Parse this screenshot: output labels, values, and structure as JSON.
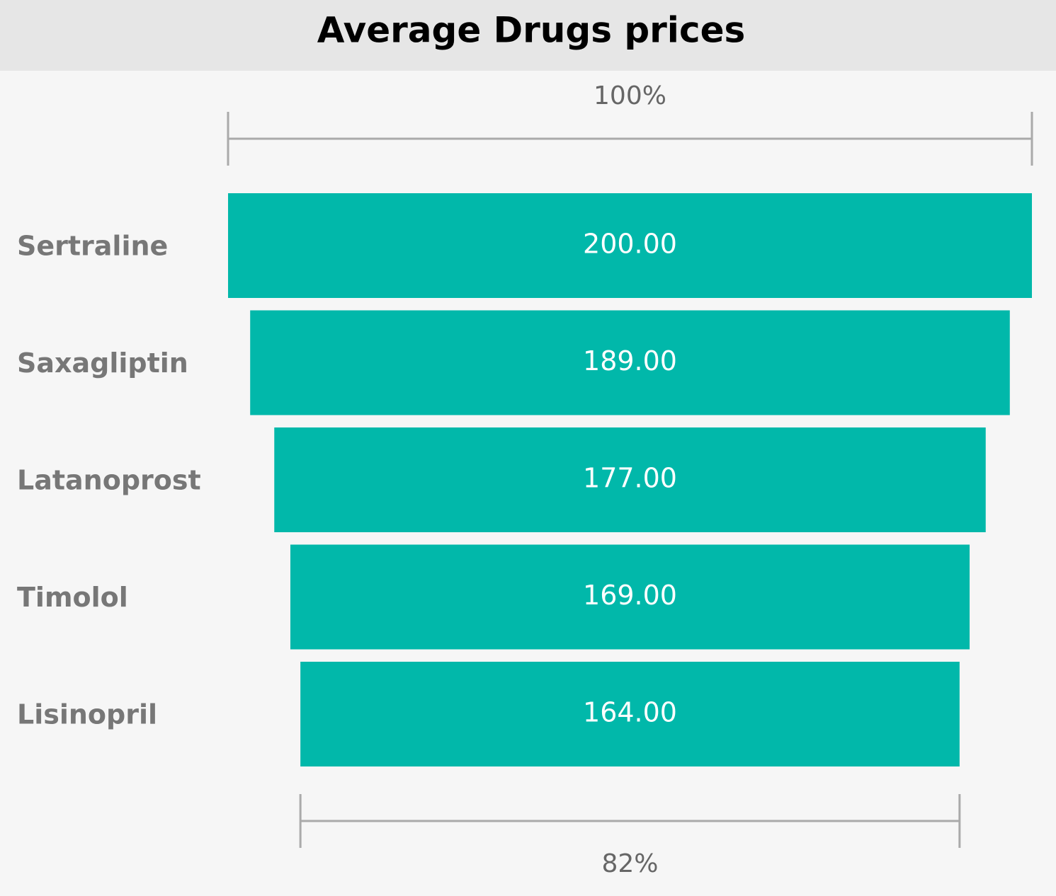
{
  "chart_data": {
    "type": "funnel",
    "title": "Average Drugs prices",
    "categories": [
      "Sertraline",
      "Saxagliptin",
      "Latanoprost",
      "Timolol",
      "Lisinopril"
    ],
    "values": [
      200,
      189,
      177,
      169,
      164
    ],
    "value_labels": [
      "200.00",
      "189.00",
      "177.00",
      "169.00",
      "164.00"
    ],
    "color": "#01b8aa",
    "top_percent": {
      "value": 100,
      "label": "100%"
    },
    "bottom_percent": {
      "value": 82,
      "label": "82%"
    }
  }
}
